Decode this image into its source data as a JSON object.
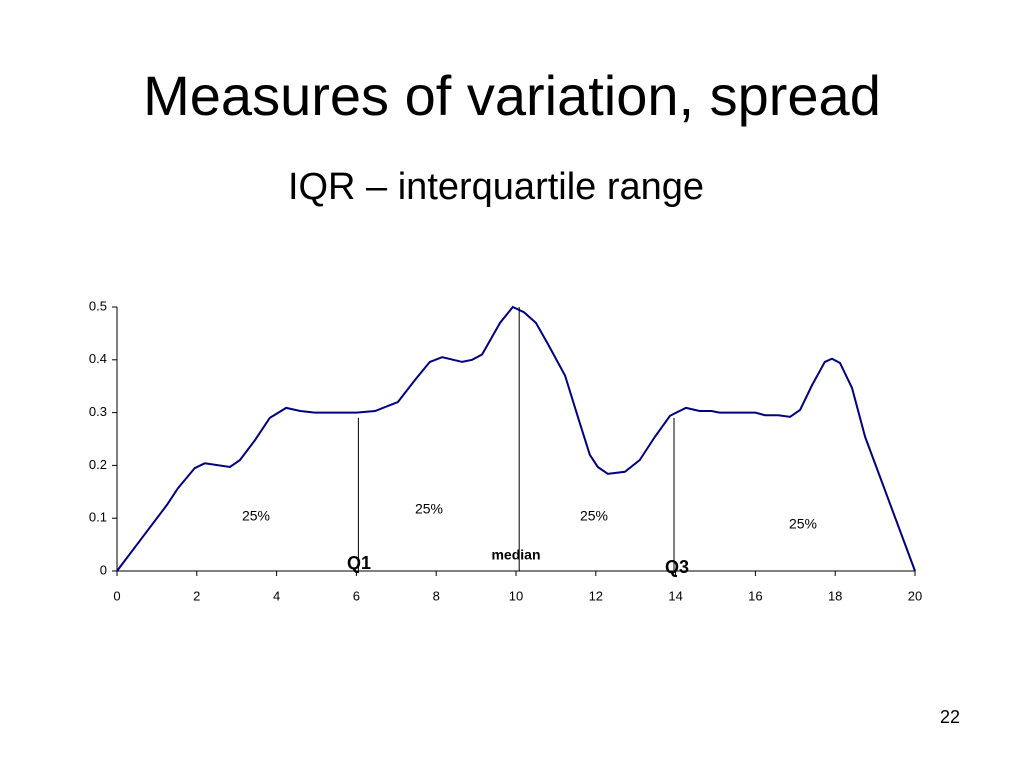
{
  "chart_data": {
    "type": "line",
    "title": "Measures of variation, spread",
    "subtitle": "IQR – interquartile range",
    "x": [
      0,
      1.25,
      1.53,
      1.95,
      2.2,
      2.83,
      3.08,
      3.46,
      3.83,
      4.24,
      4.59,
      4.96,
      6.0,
      6.47,
      7.04,
      7.47,
      7.84,
      8.15,
      8.65,
      8.9,
      9.15,
      9.6,
      9.92,
      10.2,
      10.5,
      10.8,
      11.23,
      11.6,
      11.85,
      12.05,
      12.3,
      12.73,
      13.1,
      13.48,
      13.86,
      14.26,
      14.6,
      14.9,
      15.1,
      16.0,
      16.24,
      16.57,
      16.87,
      17.12,
      17.42,
      17.74,
      17.92,
      18.12,
      18.42,
      18.75,
      20
    ],
    "values": [
      0,
      0.125,
      0.157,
      0.195,
      0.204,
      0.197,
      0.21,
      0.248,
      0.29,
      0.309,
      0.303,
      0.3,
      0.3,
      0.303,
      0.32,
      0.362,
      0.396,
      0.405,
      0.396,
      0.4,
      0.41,
      0.47,
      0.5,
      0.49,
      0.47,
      0.43,
      0.37,
      0.28,
      0.22,
      0.197,
      0.184,
      0.188,
      0.21,
      0.254,
      0.294,
      0.309,
      0.303,
      0.303,
      0.3,
      0.3,
      0.295,
      0.295,
      0.292,
      0.305,
      0.352,
      0.396,
      0.402,
      0.394,
      0.347,
      0.254,
      0
    ],
    "color": "#000080",
    "xlim": [
      0,
      20
    ],
    "xticks": [
      0,
      2,
      4,
      6,
      8,
      10,
      12,
      14,
      16,
      18,
      20
    ],
    "ylim": [
      0,
      0.5
    ],
    "yticks": [
      0,
      0.1,
      0.2,
      0.3,
      0.4,
      0.5
    ],
    "reference_lines": [
      {
        "label": "Q1",
        "x": 6.05,
        "y": 0.29
      },
      {
        "label": "median",
        "x": 10.08,
        "y": 0.5
      },
      {
        "label": "Q3",
        "x": 13.96,
        "y": 0.29
      }
    ],
    "annotations": [
      "25%",
      "25%",
      "25%",
      "25%"
    ]
  },
  "page_number": "22"
}
